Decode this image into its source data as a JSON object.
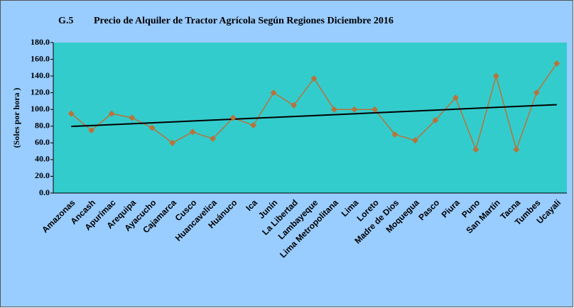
{
  "chart_data": {
    "type": "line",
    "figure_label": "G.5",
    "title": "Precio de Alquiler de Tractor Agrícola Según Regiones Diciembre 2016",
    "y_label": "(Soles por hora )",
    "categories": [
      "Amazonas",
      "Ancash",
      "Apurímac",
      "Arequipa",
      "Ayacucho",
      "Cajamarca",
      "Cusco",
      "Huancavelica",
      "Huánuco",
      "Ica",
      "Junín",
      "La Libertad",
      "Lambayeque",
      "Lima Metropolitana",
      "Lima",
      "Loreto",
      "Madre de Dios",
      "Moquegua",
      "Pasco",
      "Piura",
      "Puno",
      "San Martín",
      "Tacna",
      "Tumbes",
      "Ucayali"
    ],
    "values": [
      95,
      75,
      95,
      90,
      78,
      60,
      73,
      65,
      90,
      81,
      120,
      105,
      137,
      100,
      100,
      100,
      70,
      63,
      87,
      114,
      52,
      140,
      52,
      120,
      155
    ],
    "color": "#b8733a",
    "trendline": true,
    "trendline_color": "#000000",
    "ylim": [
      0,
      180
    ],
    "yticks": [
      {
        "value": 0,
        "label": "0.0"
      },
      {
        "value": 20,
        "label": "20.0"
      },
      {
        "value": 40,
        "label": "40.0"
      },
      {
        "value": 60,
        "label": "60.0"
      },
      {
        "value": 80,
        "label": "80.0"
      },
      {
        "value": 100,
        "label": "100.0"
      },
      {
        "value": 120,
        "label": "120.0"
      },
      {
        "value": 140,
        "label": "140.0"
      },
      {
        "value": 160,
        "label": "160.0"
      },
      {
        "value": 180,
        "label": "180.0"
      }
    ],
    "grid": false
  }
}
